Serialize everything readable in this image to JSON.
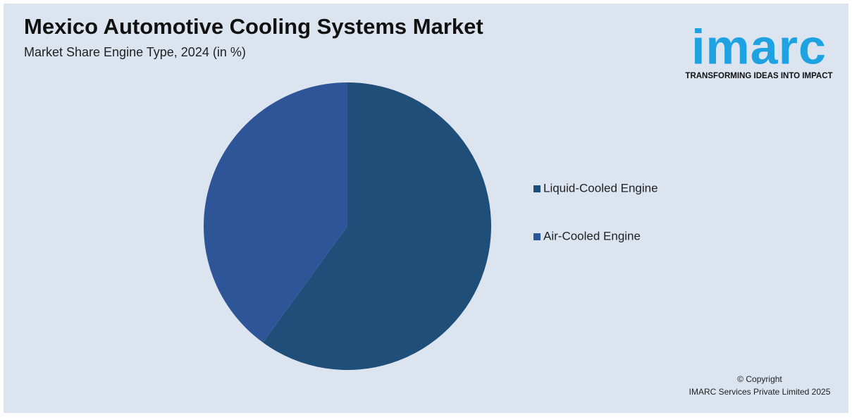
{
  "chart_data": {
    "type": "pie",
    "title": "Mexico Automotive Cooling Systems Market",
    "subtitle": "Market Share Engine Type, 2024 (in %)",
    "categories": [
      "Liquid-Cooled Engine",
      "Air-Cooled Engine"
    ],
    "values": [
      60,
      40
    ],
    "colors": [
      "#1f4e79",
      "#2e5597"
    ]
  },
  "logo": {
    "name": "imarc",
    "tagline": "TRANSFORMING IDEAS INTO IMPACT"
  },
  "footer": {
    "copyright": "© Copyright",
    "owner": "IMARC Services Private Limited 2025"
  }
}
